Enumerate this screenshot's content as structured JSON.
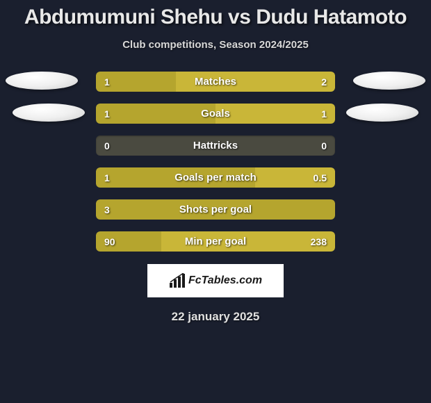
{
  "title": "Abdumumuni Shehu vs Dudu Hatamoto",
  "subtitle": "Club competitions, Season 2024/2025",
  "date": "22 january 2025",
  "logo_text": "FcTables.com",
  "colors": {
    "player1": "#b5a52e",
    "player2": "#c9b638",
    "bar_bg": "#4a4a40",
    "page_bg": "#1a1f2e"
  },
  "stats": [
    {
      "label": "Matches",
      "left_val": "1",
      "right_val": "2",
      "left_pct": 33.3,
      "right_pct": 66.7
    },
    {
      "label": "Goals",
      "left_val": "1",
      "right_val": "1",
      "left_pct": 50.0,
      "right_pct": 50.0
    },
    {
      "label": "Hattricks",
      "left_val": "0",
      "right_val": "0",
      "left_pct": 0,
      "right_pct": 0
    },
    {
      "label": "Goals per match",
      "left_val": "1",
      "right_val": "0.5",
      "left_pct": 66.7,
      "right_pct": 33.3
    },
    {
      "label": "Shots per goal",
      "left_val": "3",
      "right_val": "",
      "left_pct": 100,
      "right_pct": 0
    },
    {
      "label": "Min per goal",
      "left_val": "90",
      "right_val": "238",
      "left_pct": 27.4,
      "right_pct": 72.6
    }
  ]
}
